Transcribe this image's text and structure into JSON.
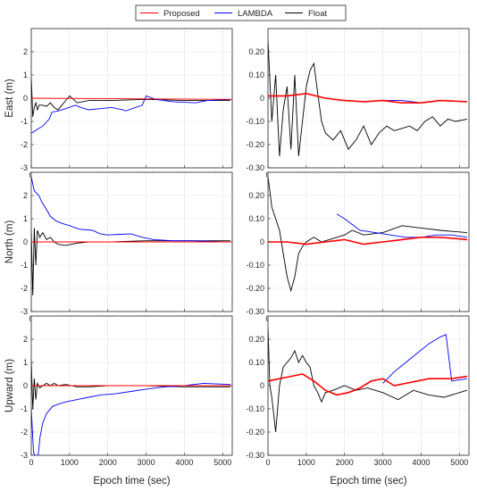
{
  "legend": [
    {
      "label": "Proposed",
      "color": "#ff0000"
    },
    {
      "label": "LAMBDA",
      "color": "#0000ff"
    },
    {
      "label": "Float",
      "color": "#000000"
    }
  ],
  "x_axis": {
    "label": "Epoch time (sec)",
    "ticks": [
      "0",
      "1000",
      "2000",
      "3000",
      "4000",
      "5000"
    ],
    "range": [
      0,
      5250
    ]
  },
  "chart_data": [
    {
      "type": "line",
      "panel": "east-full",
      "ylabel": "East (m)",
      "xlim": [
        0,
        5250
      ],
      "ylim": [
        -3,
        3
      ],
      "yticks": [
        "-3",
        "-2",
        "-1",
        "0",
        "1",
        "2"
      ],
      "grid": true,
      "series": [
        {
          "name": "Proposed",
          "x": [
            0,
            5250
          ],
          "y": [
            0,
            -0.05
          ]
        },
        {
          "name": "LAMBDA",
          "x": [
            0,
            60,
            150,
            300,
            470,
            540,
            700,
            900,
            1150,
            1300,
            1500,
            1800,
            2100,
            2400,
            2460,
            2900,
            3000,
            3250,
            3700,
            4300,
            4600,
            5200
          ],
          "y": [
            -1.5,
            -1.45,
            -1.35,
            -1.2,
            -0.9,
            -0.6,
            -0.55,
            -0.45,
            -0.3,
            -0.4,
            -0.5,
            -0.45,
            -0.4,
            -0.5,
            -0.55,
            -0.3,
            0.1,
            -0.05,
            -0.15,
            -0.2,
            -0.1,
            -0.05
          ]
        },
        {
          "name": "Float",
          "x": [
            0,
            40,
            80,
            120,
            160,
            200,
            300,
            400,
            500,
            600,
            700,
            800,
            900,
            1000,
            1200,
            1500,
            2000,
            3000,
            4000,
            5200
          ],
          "y": [
            0.9,
            -0.8,
            -0.4,
            -0.2,
            -0.5,
            -0.3,
            -0.3,
            -0.35,
            -0.2,
            -0.4,
            -0.5,
            -0.3,
            -0.1,
            0.1,
            -0.2,
            -0.1,
            -0.1,
            -0.05,
            -0.1,
            -0.1
          ]
        }
      ]
    },
    {
      "type": "line",
      "panel": "east-zoom",
      "xlim": [
        0,
        5250
      ],
      "ylim": [
        -0.3,
        0.3
      ],
      "yticks": [
        "-0.30",
        "-0.20",
        "-0.10",
        "0",
        "0.10",
        "0.20"
      ],
      "grid": true,
      "series": [
        {
          "name": "Proposed",
          "x": [
            0,
            500,
            1000,
            1500,
            2000,
            2500,
            3000,
            3500,
            4000,
            4500,
            5200
          ],
          "y": [
            0.01,
            0.01,
            0.02,
            0.0,
            -0.01,
            -0.015,
            -0.01,
            -0.02,
            -0.02,
            -0.01,
            -0.015
          ]
        },
        {
          "name": "LAMBDA",
          "x": [
            3000,
            3500,
            4000,
            4500,
            5200
          ],
          "y": [
            -0.01,
            -0.01,
            -0.02,
            -0.01,
            -0.015
          ]
        },
        {
          "name": "Float",
          "x": [
            0,
            100,
            200,
            300,
            400,
            500,
            600,
            700,
            800,
            900,
            1000,
            1100,
            1200,
            1300,
            1400,
            1500,
            1700,
            1900,
            2100,
            2300,
            2500,
            2700,
            2900,
            3100,
            3300,
            3500,
            3700,
            3900,
            4100,
            4300,
            4500,
            4700,
            4900,
            5200
          ],
          "y": [
            0.25,
            -0.1,
            0.1,
            -0.25,
            -0.05,
            0.05,
            -0.22,
            0.1,
            -0.25,
            -0.1,
            0.05,
            0.12,
            0.15,
            0.02,
            -0.1,
            -0.15,
            -0.18,
            -0.14,
            -0.22,
            -0.18,
            -0.12,
            -0.2,
            -0.15,
            -0.12,
            -0.14,
            -0.13,
            -0.12,
            -0.14,
            -0.1,
            -0.08,
            -0.12,
            -0.09,
            -0.1,
            -0.09
          ]
        }
      ]
    },
    {
      "type": "line",
      "panel": "north-full",
      "ylabel": "North (m)",
      "xlim": [
        0,
        5250
      ],
      "ylim": [
        -3,
        3
      ],
      "yticks": [
        "-3",
        "-2",
        "-1",
        "0",
        "1",
        "2"
      ],
      "grid": true,
      "series": [
        {
          "name": "Proposed",
          "x": [
            0,
            5250
          ],
          "y": [
            0,
            0
          ]
        },
        {
          "name": "LAMBDA",
          "x": [
            0,
            80,
            200,
            280,
            400,
            500,
            650,
            800,
            1000,
            1250,
            1600,
            1800,
            2000,
            2600,
            2900,
            3200,
            3700,
            4200,
            5200
          ],
          "y": [
            2.8,
            2.2,
            2.0,
            1.7,
            1.4,
            1.1,
            0.9,
            0.8,
            0.7,
            0.55,
            0.5,
            0.35,
            0.3,
            0.35,
            0.2,
            0.1,
            0.05,
            0.05,
            0.0
          ]
        },
        {
          "name": "Float",
          "x": [
            0,
            40,
            80,
            120,
            160,
            220,
            300,
            400,
            500,
            600,
            700,
            900,
            1200,
            1500,
            2000,
            3000,
            4000,
            5200
          ],
          "y": [
            0.5,
            -2.3,
            0.6,
            -1.0,
            0.5,
            0.2,
            0.4,
            0.1,
            0.2,
            0.0,
            -0.1,
            -0.15,
            -0.05,
            0.0,
            0.0,
            0.05,
            0.05,
            0.05
          ]
        }
      ]
    },
    {
      "type": "line",
      "panel": "north-zoom",
      "xlim": [
        0,
        5250
      ],
      "ylim": [
        -0.3,
        0.3
      ],
      "yticks": [
        "-0.30",
        "-0.20",
        "-0.10",
        "0",
        "0.10",
        "0.20"
      ],
      "grid": true,
      "series": [
        {
          "name": "Proposed",
          "x": [
            0,
            500,
            1000,
            1500,
            2000,
            2500,
            3000,
            3500,
            4000,
            4500,
            5200
          ],
          "y": [
            0.0,
            0.0,
            -0.01,
            0.0,
            0.01,
            -0.01,
            0.0,
            0.01,
            0.02,
            0.02,
            0.01
          ]
        },
        {
          "name": "LAMBDA",
          "x": [
            1800,
            2000,
            2400,
            2800,
            3200,
            3600,
            4000,
            4400,
            4800,
            5200
          ],
          "y": [
            0.12,
            0.1,
            0.05,
            0.04,
            0.03,
            0.02,
            0.02,
            0.03,
            0.03,
            0.02
          ]
        },
        {
          "name": "Float",
          "x": [
            0,
            50,
            100,
            200,
            300,
            400,
            500,
            600,
            700,
            800,
            900,
            1000,
            1200,
            1400,
            1600,
            1800,
            2000,
            2200,
            2500,
            3000,
            3500,
            4000,
            4500,
            5200
          ],
          "y": [
            0.28,
            0.22,
            0.15,
            0.1,
            0.05,
            -0.05,
            -0.15,
            -0.21,
            -0.15,
            -0.05,
            -0.02,
            0.0,
            0.02,
            0.0,
            0.01,
            0.02,
            0.03,
            0.05,
            0.03,
            0.04,
            0.07,
            0.06,
            0.05,
            0.04
          ]
        }
      ]
    },
    {
      "type": "line",
      "panel": "up-full",
      "ylabel": "Upward (m)",
      "xlim": [
        0,
        5250
      ],
      "ylim": [
        -3,
        3
      ],
      "yticks": [
        "-3",
        "-2",
        "-1",
        "0",
        "1",
        "2"
      ],
      "grid": true,
      "series": [
        {
          "name": "Proposed",
          "x": [
            0,
            5250
          ],
          "y": [
            0,
            0
          ]
        },
        {
          "name": "LAMBDA",
          "x": [
            0,
            60,
            100,
            180,
            230,
            300,
            400,
            550,
            700,
            900,
            1200,
            1500,
            1800,
            2200,
            2600,
            3000,
            3500,
            4000,
            4500,
            5200
          ],
          "y": [
            -1.0,
            -2.9,
            -3.0,
            -3.0,
            -2.2,
            -1.6,
            -1.2,
            -0.9,
            -0.8,
            -0.7,
            -0.6,
            -0.5,
            -0.4,
            -0.35,
            -0.25,
            -0.15,
            -0.05,
            0.0,
            0.1,
            0.05
          ]
        },
        {
          "name": "Float",
          "x": [
            0,
            40,
            80,
            120,
            160,
            220,
            300,
            400,
            500,
            600,
            700,
            900,
            1200,
            1500,
            2000,
            3000,
            4000,
            5200
          ],
          "y": [
            1.1,
            -1.0,
            0.3,
            -0.6,
            0.1,
            -0.1,
            0.0,
            0.1,
            0.0,
            0.1,
            0.0,
            0.05,
            -0.05,
            -0.05,
            0.0,
            0.0,
            -0.05,
            -0.05
          ]
        }
      ]
    },
    {
      "type": "line",
      "panel": "up-zoom",
      "xlim": [
        0,
        5250
      ],
      "ylim": [
        -0.3,
        0.3
      ],
      "yticks": [
        "-0.30",
        "-0.20",
        "-0.10",
        "0",
        "0.10",
        "0.20"
      ],
      "grid": true,
      "series": [
        {
          "name": "Proposed",
          "x": [
            0,
            300,
            600,
            900,
            1200,
            1500,
            1800,
            2100,
            2400,
            2700,
            3000,
            3300,
            3600,
            3900,
            4200,
            4500,
            4800,
            5200
          ],
          "y": [
            0.02,
            0.03,
            0.04,
            0.05,
            0.02,
            -0.02,
            -0.04,
            -0.03,
            -0.01,
            0.02,
            0.03,
            0.0,
            0.01,
            0.02,
            0.03,
            0.03,
            0.03,
            0.04
          ]
        },
        {
          "name": "LAMBDA",
          "x": [
            3000,
            3300,
            3600,
            3900,
            4200,
            4500,
            4650,
            4800,
            5200
          ],
          "y": [
            0.01,
            0.06,
            0.1,
            0.14,
            0.18,
            0.21,
            0.22,
            0.02,
            0.03
          ]
        },
        {
          "name": "Float",
          "x": [
            0,
            50,
            100,
            200,
            300,
            400,
            500,
            600,
            700,
            800,
            900,
            1000,
            1100,
            1200,
            1300,
            1400,
            1500,
            1700,
            2000,
            2300,
            2600,
            3000,
            3400,
            3800,
            4200,
            4600,
            5200
          ],
          "y": [
            0.25,
            0.0,
            -0.05,
            -0.2,
            0.0,
            0.08,
            0.1,
            0.12,
            0.15,
            0.1,
            0.13,
            0.1,
            0.08,
            0.0,
            -0.03,
            -0.07,
            -0.03,
            -0.02,
            0.0,
            -0.02,
            -0.01,
            -0.03,
            -0.06,
            -0.02,
            -0.04,
            -0.05,
            -0.02
          ]
        }
      ]
    }
  ]
}
